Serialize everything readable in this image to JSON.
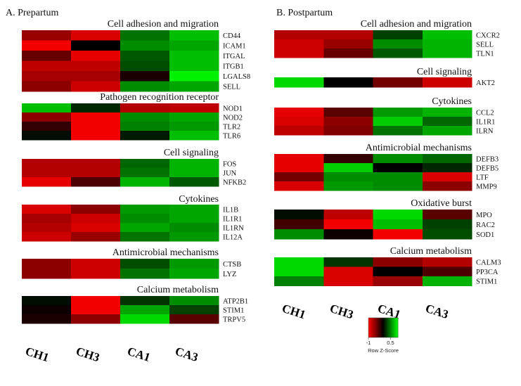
{
  "chart_data": {
    "type": "heatmap",
    "columns": [
      "CH1",
      "CH3",
      "CA1",
      "CA3"
    ],
    "color_scale": {
      "low": "#ff0000",
      "mid": "#000000",
      "high": "#00ff00"
    },
    "color_key": {
      "ticks": [
        "-1",
        "0.5"
      ],
      "title": "Row Z-Score"
    },
    "panels": [
      {
        "title": "A. Prepartum",
        "sections": [
          {
            "title": "Cell adhesion and migration",
            "rows": [
              {
                "gene": "CD44",
                "values": [
                  -0.6,
                  -0.85,
                  0.45,
                  0.75
                ]
              },
              {
                "gene": "ICAM1",
                "values": [
                  -0.95,
                  0.0,
                  0.55,
                  0.65
                ]
              },
              {
                "gene": "ITGAL",
                "values": [
                  -0.4,
                  -0.9,
                  0.35,
                  0.75
                ]
              },
              {
                "gene": "ITGB1",
                "values": [
                  -0.75,
                  -0.75,
                  0.3,
                  0.75
                ]
              },
              {
                "gene": "LGALS8",
                "values": [
                  -0.65,
                  -0.65,
                  -0.1,
                  0.95
                ]
              },
              {
                "gene": "SELL",
                "values": [
                  -0.55,
                  -0.8,
                  0.55,
                  0.65
                ]
              }
            ]
          },
          {
            "title": "Pathogen recognition receptor",
            "rows": [
              {
                "gene": "NOD1",
                "values": [
                  0.75,
                  0.15,
                  -0.7,
                  -0.75
                ]
              },
              {
                "gene": "NOD2",
                "values": [
                  -0.55,
                  -0.95,
                  0.55,
                  0.65
                ]
              },
              {
                "gene": "TLR2",
                "values": [
                  -0.2,
                  -0.95,
                  0.5,
                  0.6
                ]
              },
              {
                "gene": "TLR6",
                "values": [
                  0.05,
                  -0.95,
                  0.1,
                  0.75
                ]
              }
            ]
          },
          {
            "title": "Cell signaling",
            "rows": [
              {
                "gene": "FOS",
                "values": [
                  -0.7,
                  -0.7,
                  0.4,
                  0.7
                ]
              },
              {
                "gene": "JUN",
                "values": [
                  -0.7,
                  -0.7,
                  0.45,
                  0.7
                ]
              },
              {
                "gene": "NFKB2",
                "values": [
                  -0.9,
                  -0.3,
                  0.7,
                  0.35
                ]
              }
            ]
          },
          {
            "title": "Cytokines",
            "rows": [
              {
                "gene": "IL1B",
                "values": [
                  -0.85,
                  -0.55,
                  0.6,
                  0.65
                ]
              },
              {
                "gene": "IL1R1",
                "values": [
                  -0.65,
                  -0.8,
                  0.55,
                  0.65
                ]
              },
              {
                "gene": "IL1RN",
                "values": [
                  -0.7,
                  -0.85,
                  0.65,
                  0.55
                ]
              },
              {
                "gene": "IL12A",
                "values": [
                  -0.8,
                  -0.6,
                  0.45,
                  0.6
                ]
              }
            ]
          },
          {
            "title": "Antimicrobial mechanisms",
            "rows": [
              {
                "gene": "CTSB",
                "values": [
                  -0.55,
                  -0.8,
                  0.3,
                  0.6
                ]
              },
              {
                "gene": "LYZ",
                "values": [
                  -0.55,
                  -0.8,
                  0.45,
                  0.65
                ]
              }
            ]
          },
          {
            "title": "Calcium metabolism",
            "rows": [
              {
                "gene": "ATP2B1",
                "values": [
                  0.05,
                  -0.95,
                  0.2,
                  0.55
                ]
              },
              {
                "gene": "STIM1",
                "values": [
                  -0.05,
                  -0.95,
                  0.65,
                  0.25
                ]
              },
              {
                "gene": "TRPV5",
                "values": [
                  -0.1,
                  -0.55,
                  0.85,
                  -0.35
                ]
              }
            ]
          }
        ]
      },
      {
        "title": "B. Postpartum",
        "sections": [
          {
            "title": "Cell adhesion and migration",
            "rows": [
              {
                "gene": "CXCR2",
                "values": [
                  -0.7,
                  -0.7,
                  0.25,
                  0.75
                ]
              },
              {
                "gene": "SELL",
                "values": [
                  -0.8,
                  -0.6,
                  0.55,
                  0.7
                ]
              },
              {
                "gene": "TLN1",
                "values": [
                  -0.8,
                  -0.4,
                  0.35,
                  0.7
                ]
              }
            ]
          },
          {
            "title": "Cell signaling",
            "rows": [
              {
                "gene": "AKT2",
                "values": [
                  0.85,
                  0.0,
                  -0.45,
                  -0.8
                ]
              }
            ]
          },
          {
            "title": "Cytokines",
            "rows": [
              {
                "gene": "CCL2",
                "values": [
                  -0.9,
                  -0.35,
                  0.6,
                  0.7
                ]
              },
              {
                "gene": "IL1R1",
                "values": [
                  -0.85,
                  -0.55,
                  0.8,
                  0.4
                ]
              },
              {
                "gene": "ILRN",
                "values": [
                  -0.75,
                  -0.5,
                  0.45,
                  0.65
                ]
              }
            ]
          },
          {
            "title": "Antimicrobial mechanisms",
            "rows": [
              {
                "gene": "DEFB3",
                "values": [
                  -0.9,
                  -0.2,
                  0.55,
                  0.4
                ]
              },
              {
                "gene": "DEFB5",
                "values": [
                  -0.9,
                  0.8,
                  0.0,
                  0.15
                ]
              },
              {
                "gene": "LTF",
                "values": [
                  -0.45,
                  0.55,
                  0.55,
                  -0.85
                ]
              },
              {
                "gene": "MMP9",
                "values": [
                  -0.85,
                  0.6,
                  0.55,
                  -0.55
                ]
              }
            ]
          },
          {
            "title": "Oxidative burst",
            "rows": [
              {
                "gene": "MPO",
                "values": [
                  0.05,
                  -0.75,
                  0.85,
                  -0.35
                ]
              },
              {
                "gene": "RAC2",
                "values": [
                  -0.25,
                  -0.95,
                  0.75,
                  0.25
                ]
              },
              {
                "gene": "SOD1",
                "values": [
                  0.55,
                  -0.05,
                  -0.95,
                  0.3
                ]
              }
            ]
          },
          {
            "title": "Calcium metabolism",
            "rows": [
              {
                "gene": "CALM3",
                "values": [
                  0.85,
                  0.2,
                  -0.55,
                  -0.7
                ]
              },
              {
                "gene": "PP3CA",
                "values": [
                  0.85,
                  -0.85,
                  0.0,
                  -0.3
                ]
              },
              {
                "gene": "STIM1",
                "values": [
                  0.5,
                  -0.85,
                  -0.6,
                  0.7
                ]
              }
            ]
          }
        ]
      }
    ]
  }
}
